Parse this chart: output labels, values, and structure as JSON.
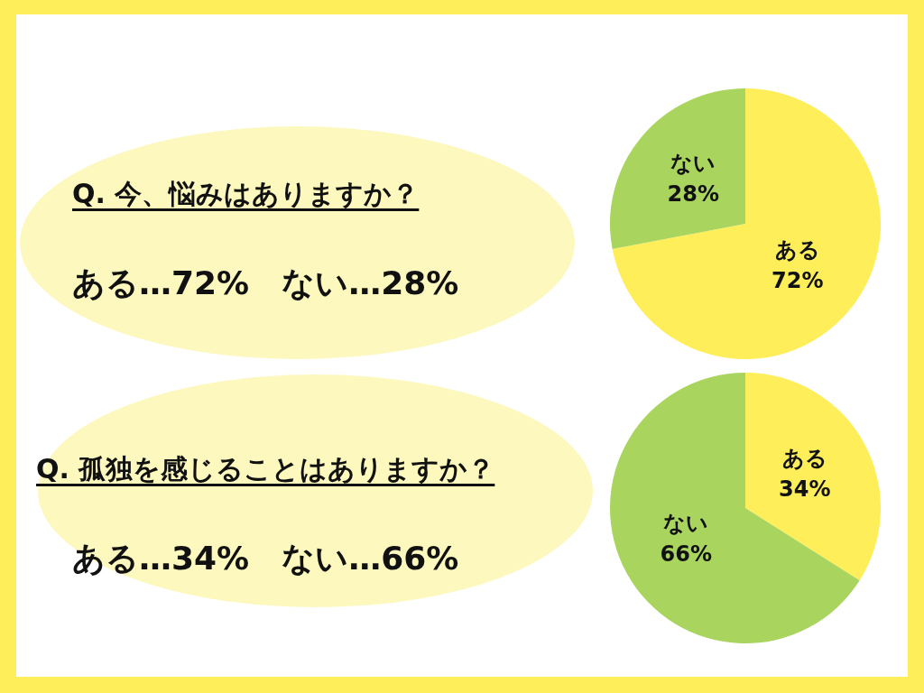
{
  "chart_data": [
    {
      "type": "pie",
      "title": "Q. 今、悩みはありますか？",
      "subtitle": "ある…72%　ない…28%",
      "categories": [
        "ある",
        "ない"
      ],
      "values": [
        72,
        28
      ],
      "colors": [
        "#fdee5a",
        "#a9d55f"
      ],
      "value_labels": [
        "72%",
        "28%"
      ]
    },
    {
      "type": "pie",
      "title": "Q. 孤独を感じることはありますか？",
      "subtitle": "ある…34%　ない…66%",
      "categories": [
        "ある",
        "ない"
      ],
      "values": [
        34,
        66
      ],
      "colors": [
        "#fdee5a",
        "#a9d55f"
      ],
      "value_labels": [
        "34%",
        "66%"
      ]
    }
  ]
}
